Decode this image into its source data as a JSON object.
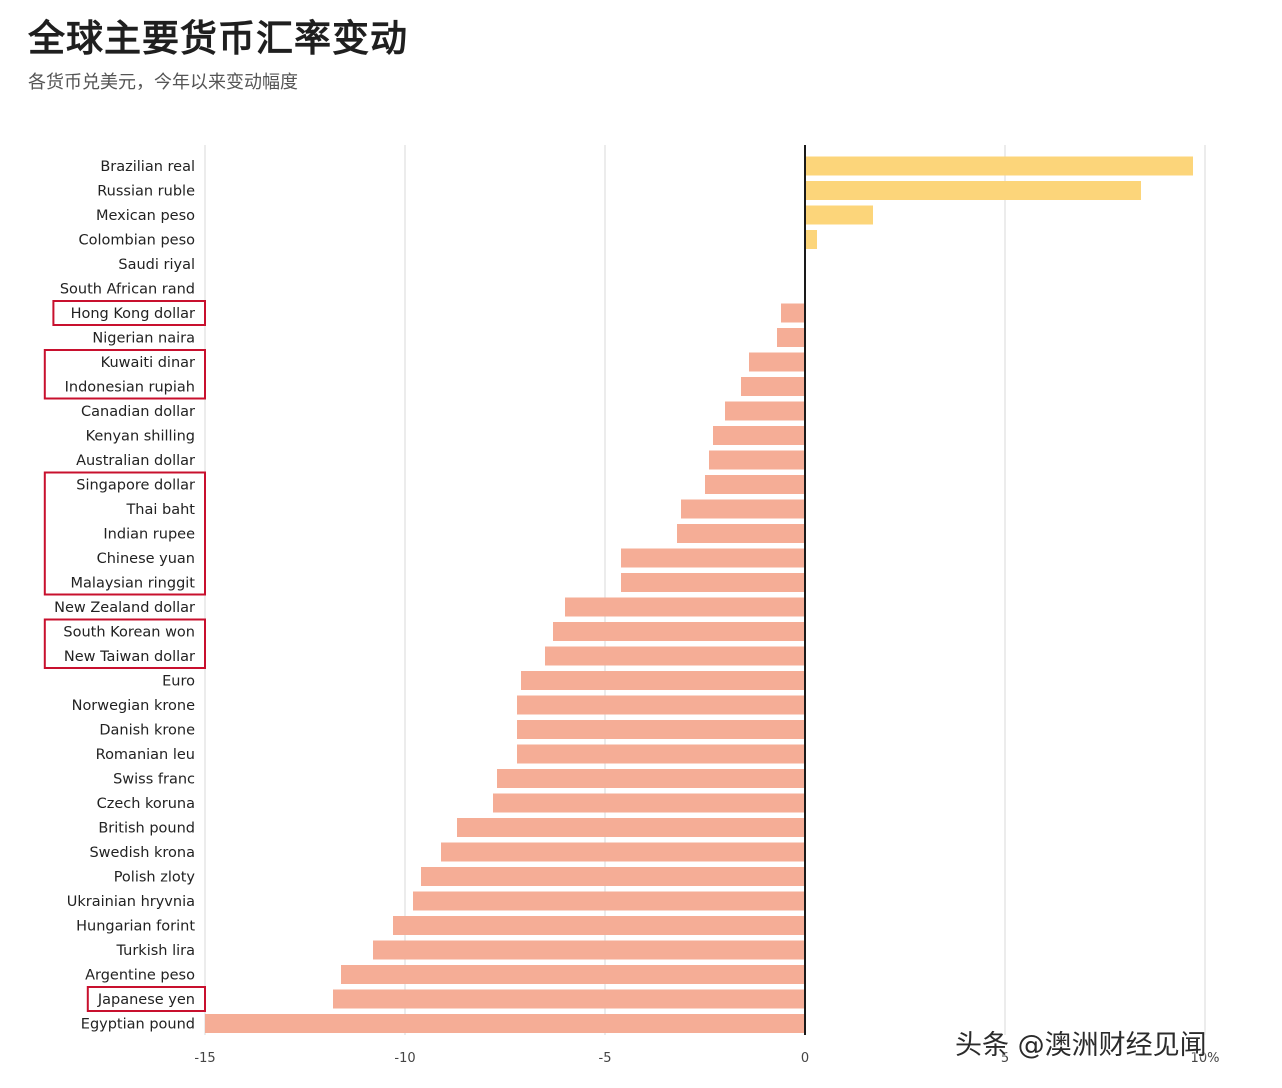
{
  "header": {
    "title": "全球主要货币汇率变动",
    "subtitle": "各货币兑美元，今年以来变动幅度"
  },
  "watermark": "头条 @澳洲财经见闻",
  "chart_data": {
    "type": "bar",
    "orientation": "horizontal",
    "title": "全球主要货币汇率变动",
    "subtitle": "各货币兑美元，今年以来变动幅度",
    "xlabel": "",
    "ylabel": "",
    "xlim": [
      -15,
      10
    ],
    "xticks": [
      -15,
      -10,
      -5,
      0,
      5,
      10
    ],
    "xtick_labels": [
      "-15",
      "-10",
      "-5",
      "0",
      "5",
      "10%"
    ],
    "grid": "vertical",
    "colors": {
      "positive": "#fcd57a",
      "negative": "#f5ad96",
      "zero_line": "#1a1a1a",
      "grid": "#d9d9d9",
      "highlight_box": "#c8102e"
    },
    "categories": [
      "Brazilian real",
      "Russian ruble",
      "Mexican peso",
      "Colombian peso",
      "Saudi riyal",
      "South African rand",
      "Hong Kong dollar",
      "Nigerian naira",
      "Kuwaiti dinar",
      "Indonesian rupiah",
      "Canadian dollar",
      "Kenyan shilling",
      "Australian dollar",
      "Singapore dollar",
      "Thai baht",
      "Indian rupee",
      "Chinese yuan",
      "Malaysian ringgit",
      "New Zealand dollar",
      "South Korean won",
      "New Taiwan dollar",
      "Euro",
      "Norwegian krone",
      "Danish krone",
      "Romanian leu",
      "Swiss franc",
      "Czech koruna",
      "British pound",
      "Swedish krona",
      "Polish zloty",
      "Ukrainian hryvnia",
      "Hungarian forint",
      "Turkish lira",
      "Argentine peso",
      "Japanese yen",
      "Egyptian pound"
    ],
    "values": [
      9.7,
      8.4,
      1.7,
      0.3,
      0.0,
      0.0,
      -0.6,
      -0.7,
      -1.4,
      -1.6,
      -2.0,
      -2.3,
      -2.4,
      -2.5,
      -3.1,
      -3.2,
      -4.6,
      -4.6,
      -6.0,
      -6.3,
      -6.5,
      -7.1,
      -7.2,
      -7.2,
      -7.2,
      -7.7,
      -7.8,
      -8.7,
      -9.1,
      -9.6,
      -9.8,
      -10.3,
      -10.8,
      -11.6,
      -11.8,
      -15.0
    ],
    "highlighted_groups": [
      [
        "Hong Kong dollar"
      ],
      [
        "Kuwaiti dinar",
        "Indonesian rupiah"
      ],
      [
        "Singapore dollar",
        "Thai baht",
        "Indian rupee",
        "Chinese yuan",
        "Malaysian ringgit"
      ],
      [
        "South Korean won",
        "New Taiwan dollar"
      ],
      [
        "Japanese yen"
      ]
    ]
  }
}
